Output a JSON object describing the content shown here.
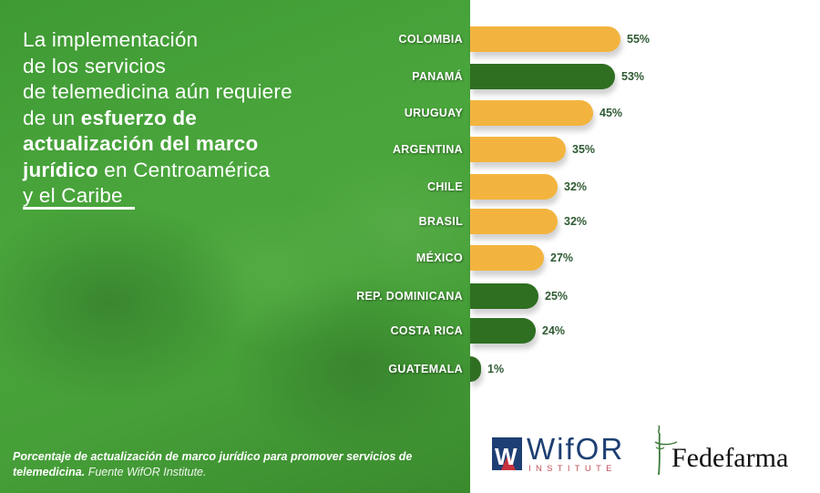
{
  "headline": {
    "line1": "La implementación",
    "line2": "de los servicios",
    "line3": "de telemedicina aún requiere",
    "line4_regular": "de un ",
    "line4_bold": "esfuerzo de",
    "line5_bold": "actualización del marco",
    "line6_bold": "jurídico",
    "line6_regular": " en Centroamérica",
    "line7": "y el Caribe"
  },
  "caption": {
    "bold_part": "Porcentaje de actualización de marco jurídico para promover servicios de telemedicina.",
    "light_part": "Fuente WifOR Institute."
  },
  "colors": {
    "panel_green": "#45a038",
    "bar_yellow": "#f3b43f",
    "bar_green": "#2f6f22",
    "value_text": "#2f5a33"
  },
  "logos": {
    "wifor": {
      "name": "WifOR",
      "sub": "INSTITUTE",
      "mark": "W"
    },
    "fedefarma": {
      "name": "Fedefarma"
    }
  },
  "chart_data": {
    "type": "bar",
    "orientation": "horizontal",
    "title": "Porcentaje de actualización de marco jurídico para promover servicios de telemedicina",
    "source": "Fuente WifOR Institute.",
    "xlabel": "",
    "ylabel": "",
    "value_suffix": "%",
    "xlim": [
      0,
      100
    ],
    "grid": false,
    "legend": null,
    "categories": [
      "COLOMBIA",
      "PANAMÁ",
      "URUGUAY",
      "ARGENTINA",
      "CHILE",
      "BRASIL",
      "MÉXICO",
      "REP. DOMINICANA",
      "COSTA RICA",
      "GUATEMALA"
    ],
    "values": [
      55,
      53,
      45,
      35,
      32,
      32,
      27,
      25,
      24,
      1
    ],
    "labels": [
      "55%",
      "53%",
      "45%",
      "35%",
      "32%",
      "32%",
      "27%",
      "25%",
      "24%",
      "1%"
    ],
    "bar_colors": [
      "#f3b43f",
      "#2f6f22",
      "#f3b43f",
      "#f3b43f",
      "#f3b43f",
      "#f3b43f",
      "#f3b43f",
      "#2f6f22",
      "#2f6f22",
      "#2f6f22"
    ]
  }
}
